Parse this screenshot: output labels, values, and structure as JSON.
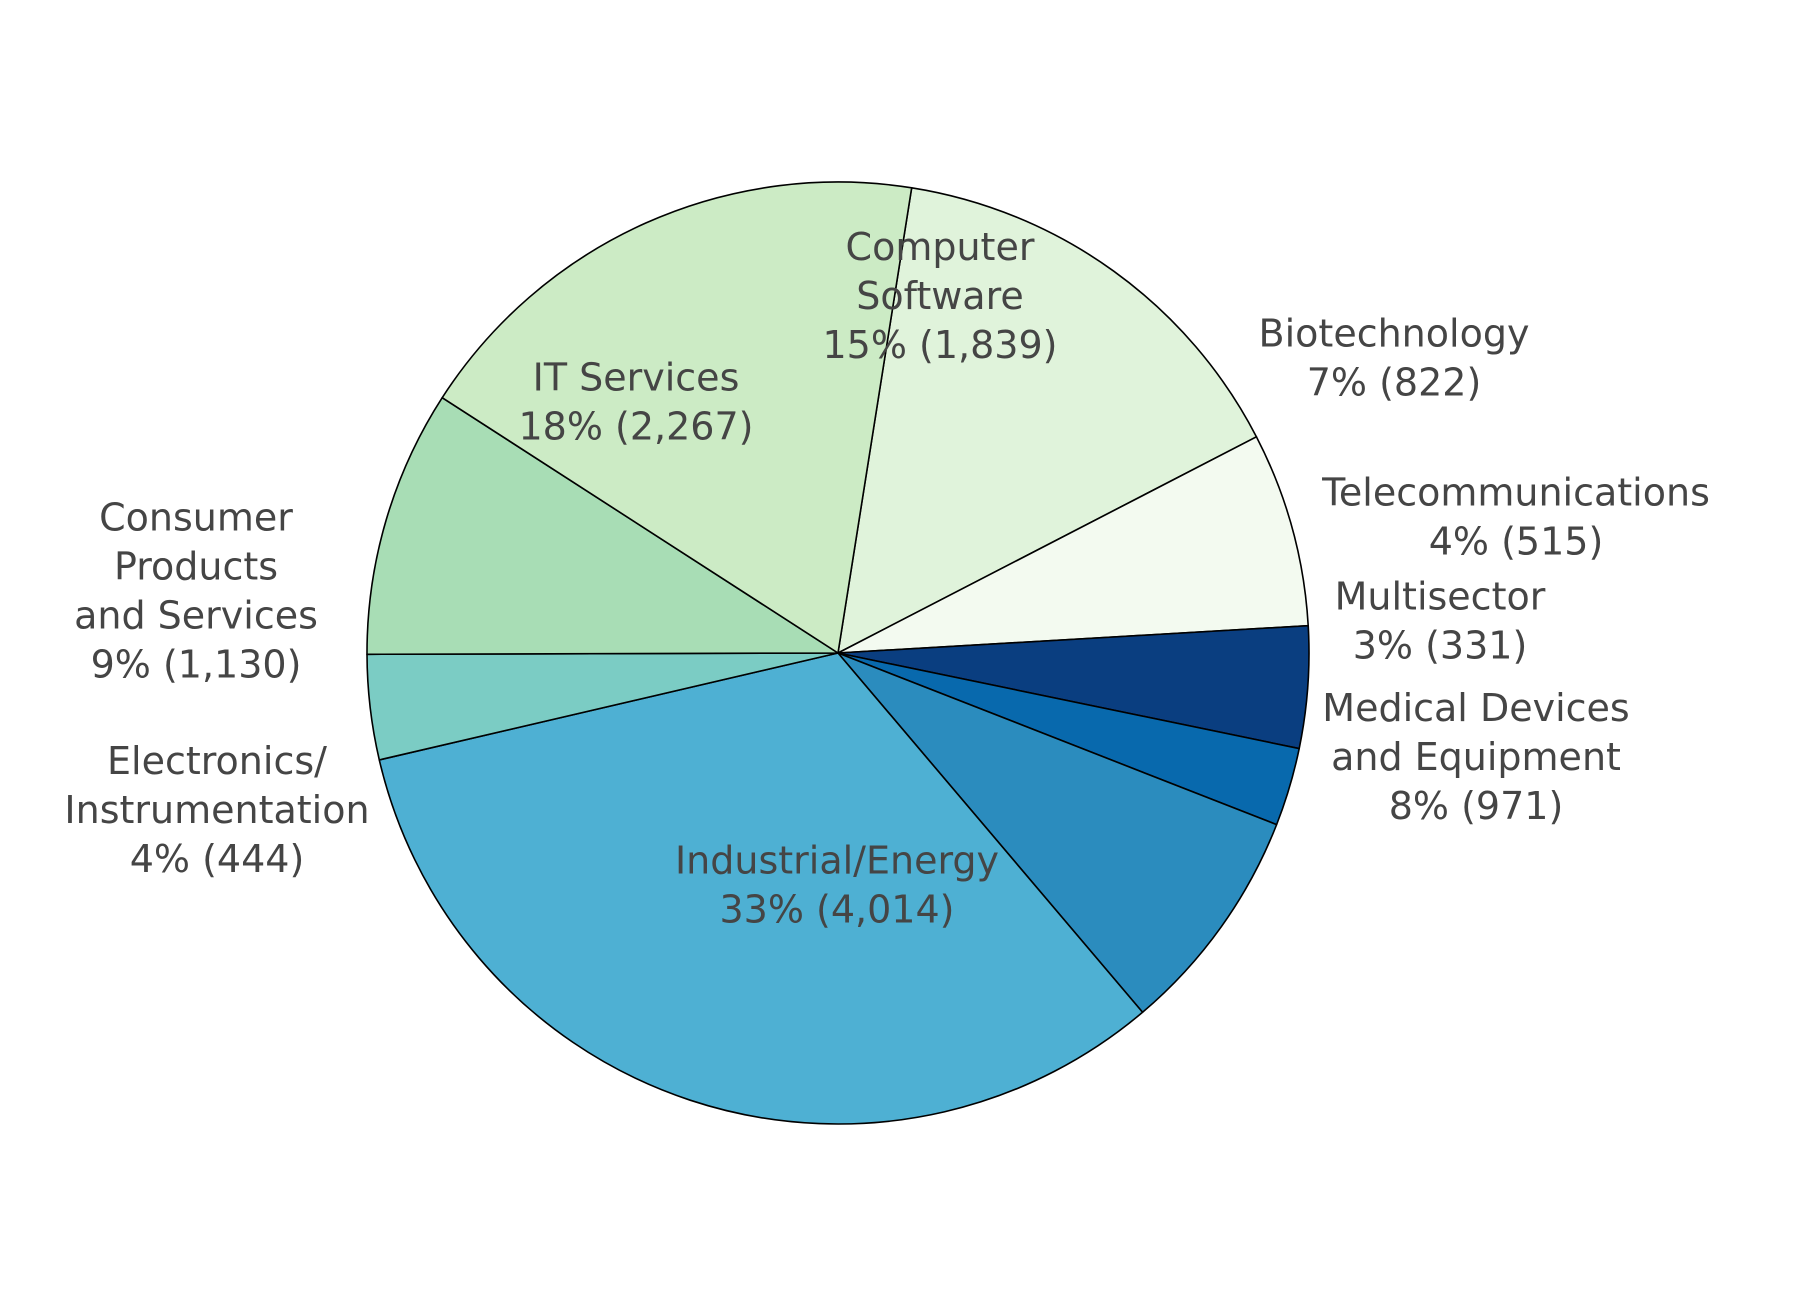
{
  "chart_data": {
    "type": "pie",
    "title": "",
    "legend": "none",
    "grid": false,
    "unit": "count",
    "start_category": "Computer Software",
    "direction": "clockwise",
    "slices": [
      {
        "name": "Computer Software",
        "label_lines": [
          "Computer",
          "Software",
          "15% (1,839)"
        ],
        "value": 1839,
        "percent": "15%",
        "color": "#e0f3db"
      },
      {
        "name": "Biotechnology",
        "label_lines": [
          "Biotechnology",
          "7% (822)"
        ],
        "value": 822,
        "percent": "7%",
        "color": "#f3faf0"
      },
      {
        "name": "Telecommunications",
        "label_lines": [
          "Telecommunications",
          "4% (515)"
        ],
        "value": 515,
        "percent": "4%",
        "color": "#0a3e80"
      },
      {
        "name": "Multisector",
        "label_lines": [
          "Multisector",
          "3% (331)"
        ],
        "value": 331,
        "percent": "3%",
        "color": "#0869ad"
      },
      {
        "name": "Medical Devices and Equipment",
        "label_lines": [
          "Medical Devices",
          "and Equipment",
          "8% (971)"
        ],
        "value": 971,
        "percent": "8%",
        "color": "#2b8cbe"
      },
      {
        "name": "Industrial/Energy",
        "label_lines": [
          "Industrial/Energy",
          "33% (4,014)"
        ],
        "value": 4014,
        "percent": "33%",
        "color": "#4eb0d3"
      },
      {
        "name": "Electronics/ Instrumentation",
        "label_lines": [
          "Electronics/",
          "Instrumentation",
          "4% (444)"
        ],
        "value": 444,
        "percent": "4%",
        "color": "#7bccc4"
      },
      {
        "name": "Consumer Products and Services",
        "label_lines": [
          "Consumer",
          "Products",
          "and Services",
          "9% (1,130)"
        ],
        "value": 1130,
        "percent": "9%",
        "color": "#a8ddb5"
      },
      {
        "name": "IT Services",
        "label_lines": [
          "IT Services",
          "18% (2,267)"
        ],
        "value": 2267,
        "percent": "18%",
        "color": "#ccebc5"
      }
    ]
  }
}
